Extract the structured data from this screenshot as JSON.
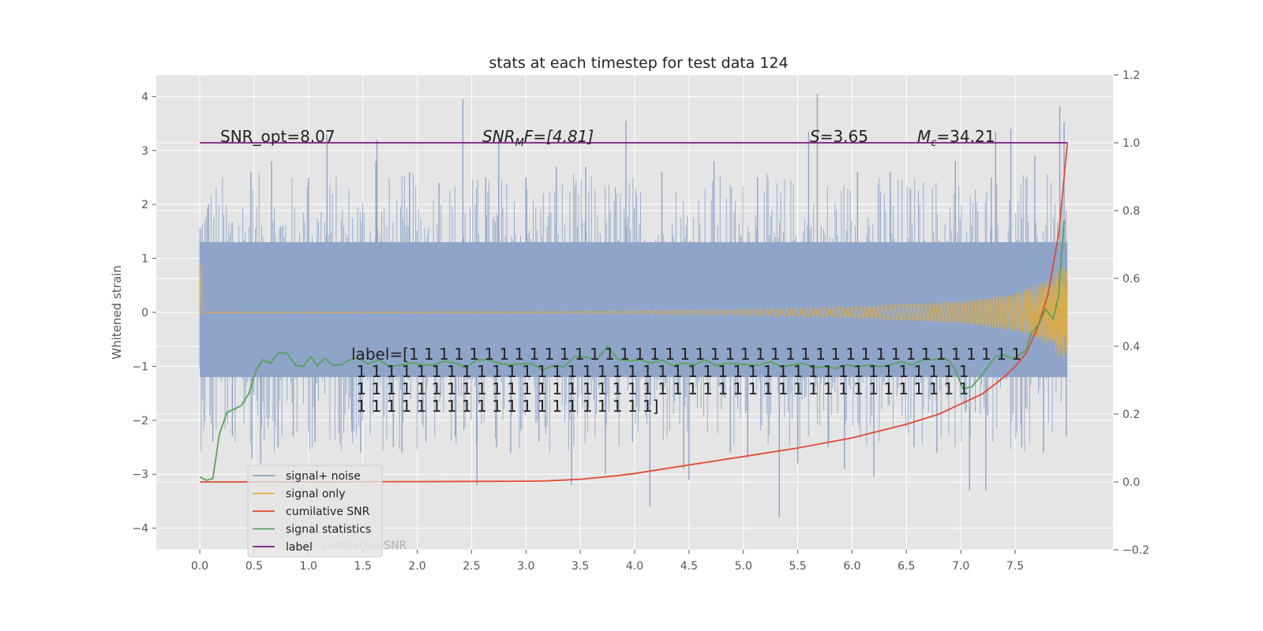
{
  "chart_data": {
    "type": "line",
    "title": "stats at each timestep for test data 124",
    "ylabel": "Whitened strain",
    "xlim": [
      -0.4,
      8.4
    ],
    "ylim": [
      -4.4,
      4.4
    ],
    "y2lim": [
      -0.2,
      1.2
    ],
    "grid": true,
    "x_ticks": [
      0.0,
      0.5,
      1.0,
      1.5,
      2.0,
      2.5,
      3.0,
      3.5,
      4.0,
      4.5,
      5.0,
      5.5,
      6.0,
      6.5,
      7.0,
      7.5
    ],
    "x_tick_labels": [
      "0.0",
      "0.5",
      "1.0",
      "1.5",
      "2.0",
      "2.5",
      "3.0",
      "3.5",
      "4.0",
      "4.5",
      "5.0",
      "5.5",
      "6.0",
      "6.5",
      "7.0",
      "7.5"
    ],
    "y_ticks": [
      -4,
      -3,
      -2,
      -1,
      0,
      1,
      2,
      3,
      4
    ],
    "y_tick_labels": [
      "−4",
      "−3",
      "−2",
      "−1",
      "0",
      "1",
      "2",
      "3",
      "4"
    ],
    "y2_ticks": [
      -0.2,
      0.0,
      0.2,
      0.4,
      0.6,
      0.8,
      1.0,
      1.2
    ],
    "y2_tick_labels": [
      "−0.2",
      "0.0",
      "0.2",
      "0.4",
      "0.6",
      "0.8",
      "1.0",
      "1.2"
    ],
    "annotations": {
      "snr_opt": "SNR_opt=8.07",
      "snr_mf": {
        "base": "SNR",
        "sub": "M",
        "rest": "F=[4.81]"
      },
      "s": {
        "base": "S",
        "rest": "=3.65"
      },
      "mc": {
        "base": "M",
        "sub": "c",
        "rest": "=34.21"
      },
      "label_lines": [
        "label=[1 1 1 1 1 1 1 1 1 1 1 1 1 1 1 1 1 1 1 1 1 1 1 1 1 1 1 1 1 1 1 1 1 1 1 1 1 1 1 1 1",
        " 1 1 1 1 1 1 1 1 1 1 1 1 1 1 1 1 1 1 1 1 1 1 1 1 1 1 1 1 1 1 1 1 1 1 1 1 1 1 1 1 1",
        " 1 1 1 1 1 1 1 1 1 1 1 1 1 1 1 1 1 1 1 1 1 1 1 1 1 1 1 1 1 1 1 1 1 1 1 1 1 1 1 1 1",
        " 1 1 1 1 1 1 1 1 1 1 1 1 1 1 1 1 1 1 1 1]"
      ]
    },
    "legend_position": "lower-left",
    "ghost_text": "cumilative SNR",
    "series": [
      {
        "name": "signal+ noise",
        "axis": "left",
        "color": "#8ea4c8",
        "kind": "noise",
        "core_range": [
          -1.2,
          1.3
        ],
        "x_range": [
          0.0,
          7.98
        ],
        "extremes": [
          [
            0.08,
            2.0
          ],
          [
            0.12,
            -2.4
          ],
          [
            0.3,
            -2.3
          ],
          [
            0.47,
            2.6
          ],
          [
            0.48,
            -2.7
          ],
          [
            0.56,
            -2.8
          ],
          [
            0.66,
            2.8
          ],
          [
            0.72,
            -2.5
          ],
          [
            0.86,
            -2.3
          ],
          [
            1.0,
            2.5
          ],
          [
            1.06,
            -2.4
          ],
          [
            1.17,
            3.3
          ],
          [
            1.4,
            -2.2
          ],
          [
            1.48,
            -2.6
          ],
          [
            1.62,
            2.8
          ],
          [
            1.63,
            3.2
          ],
          [
            1.78,
            -2.5
          ],
          [
            1.86,
            -2.6
          ],
          [
            1.93,
            2.6
          ],
          [
            2.08,
            -2.4
          ],
          [
            2.2,
            2.4
          ],
          [
            2.35,
            -2.3
          ],
          [
            2.42,
            3.95
          ],
          [
            2.55,
            -3.2
          ],
          [
            2.63,
            2.5
          ],
          [
            2.73,
            -2.5
          ],
          [
            2.75,
            3.3
          ],
          [
            2.86,
            -2.6
          ],
          [
            3.0,
            2.5
          ],
          [
            3.12,
            -2.4
          ],
          [
            3.28,
            2.7
          ],
          [
            3.42,
            -3.2
          ],
          [
            3.55,
            2.7
          ],
          [
            3.73,
            -3.0
          ],
          [
            3.92,
            3.55
          ],
          [
            3.98,
            -2.4
          ],
          [
            4.14,
            -3.6
          ],
          [
            4.25,
            2.6
          ],
          [
            4.45,
            -2.9
          ],
          [
            4.5,
            -3.1
          ],
          [
            4.73,
            2.8
          ],
          [
            4.88,
            -2.6
          ],
          [
            5.04,
            -2.7
          ],
          [
            5.13,
            2.5
          ],
          [
            5.33,
            -3.8
          ],
          [
            5.5,
            -2.8
          ],
          [
            5.6,
            3.35
          ],
          [
            5.68,
            4.05
          ],
          [
            5.78,
            -2.5
          ],
          [
            5.93,
            -2.9
          ],
          [
            6.05,
            2.6
          ],
          [
            6.2,
            -3.05
          ],
          [
            6.35,
            2.6
          ],
          [
            6.57,
            -2.5
          ],
          [
            6.78,
            -2.6
          ],
          [
            6.95,
            2.8
          ],
          [
            7.08,
            -3.3
          ],
          [
            7.23,
            -3.3
          ],
          [
            7.28,
            2.5
          ],
          [
            7.32,
            3.35
          ],
          [
            7.46,
            3.4
          ],
          [
            7.56,
            -2.5
          ],
          [
            7.68,
            2.9
          ],
          [
            7.76,
            -2.6
          ],
          [
            7.91,
            3.82
          ],
          [
            7.95,
            3.52
          ],
          [
            7.97,
            -2.3
          ]
        ]
      },
      {
        "name": "signal only",
        "axis": "left",
        "color": "#e5ae38",
        "kind": "chirp",
        "amplitude_points": [
          [
            0,
            0.0
          ],
          [
            3.5,
            0.02
          ],
          [
            5.0,
            0.05
          ],
          [
            6.0,
            0.1
          ],
          [
            7.0,
            0.2
          ],
          [
            7.5,
            0.35
          ],
          [
            7.8,
            0.6
          ],
          [
            7.98,
            1.0
          ]
        ],
        "spike": [
          0.01,
          0.9
        ]
      },
      {
        "name": "cumilative SNR",
        "axis": "right",
        "color": "#e24a33",
        "x": [
          0.0,
          1.0,
          2.0,
          3.0,
          3.2,
          3.5,
          3.8,
          4.0,
          4.5,
          5.0,
          5.5,
          6.0,
          6.5,
          6.8,
          7.0,
          7.2,
          7.4,
          7.5,
          7.6,
          7.7,
          7.8,
          7.9,
          7.98
        ],
        "y": [
          0.0,
          0.0,
          0.001,
          0.002,
          0.003,
          0.008,
          0.017,
          0.025,
          0.05,
          0.075,
          0.1,
          0.13,
          0.17,
          0.2,
          0.23,
          0.26,
          0.31,
          0.34,
          0.38,
          0.45,
          0.55,
          0.73,
          1.0
        ]
      },
      {
        "name": "signal statistics",
        "axis": "right",
        "color": "#59a35a",
        "x": [
          0.0,
          0.06,
          0.12,
          0.18,
          0.25,
          0.32,
          0.38,
          0.45,
          0.52,
          0.58,
          0.65,
          0.72,
          0.8,
          0.88,
          0.95,
          1.02,
          1.08,
          1.15,
          1.22,
          1.3,
          1.38,
          1.45,
          1.55,
          1.65,
          1.75,
          1.85,
          1.95,
          2.05,
          2.15,
          2.25,
          2.35,
          2.45,
          2.55,
          2.65,
          2.75,
          2.85,
          2.95,
          3.05,
          3.15,
          3.25,
          3.35,
          3.45,
          3.55,
          3.65,
          3.75,
          3.85,
          3.95,
          4.05,
          4.15,
          4.25,
          4.35,
          4.45,
          4.55,
          4.65,
          4.75,
          4.85,
          4.95,
          5.05,
          5.15,
          5.25,
          5.35,
          5.45,
          5.55,
          5.65,
          5.75,
          5.85,
          5.95,
          6.05,
          6.15,
          6.25,
          6.35,
          6.45,
          6.55,
          6.65,
          6.75,
          6.85,
          6.9,
          6.95,
          7.02,
          7.1,
          7.18,
          7.25,
          7.32,
          7.4,
          7.45,
          7.52,
          7.6,
          7.65,
          7.72,
          7.78,
          7.85,
          7.9,
          7.95
        ],
        "y": [
          0.015,
          0.005,
          0.01,
          0.14,
          0.205,
          0.215,
          0.225,
          0.26,
          0.33,
          0.36,
          0.35,
          0.38,
          0.38,
          0.345,
          0.34,
          0.37,
          0.342,
          0.365,
          0.345,
          0.345,
          0.36,
          0.365,
          0.348,
          0.36,
          0.34,
          0.345,
          0.352,
          0.345,
          0.345,
          0.356,
          0.35,
          0.338,
          0.36,
          0.36,
          0.35,
          0.345,
          0.348,
          0.35,
          0.33,
          0.343,
          0.34,
          0.37,
          0.368,
          0.36,
          0.4,
          0.36,
          0.357,
          0.36,
          0.35,
          0.36,
          0.343,
          0.35,
          0.345,
          0.36,
          0.343,
          0.35,
          0.348,
          0.345,
          0.345,
          0.355,
          0.34,
          0.345,
          0.35,
          0.337,
          0.34,
          0.335,
          0.345,
          0.34,
          0.345,
          0.34,
          0.345,
          0.355,
          0.345,
          0.36,
          0.36,
          0.365,
          0.355,
          0.33,
          0.275,
          0.28,
          0.31,
          0.34,
          0.37,
          0.375,
          0.365,
          0.37,
          0.39,
          0.44,
          0.465,
          0.51,
          0.48,
          0.55,
          0.77
        ]
      },
      {
        "name": "label",
        "axis": "right",
        "color": "#7a1c7a",
        "x": [
          0.0,
          7.98
        ],
        "y": [
          1.0,
          1.0
        ]
      }
    ]
  }
}
